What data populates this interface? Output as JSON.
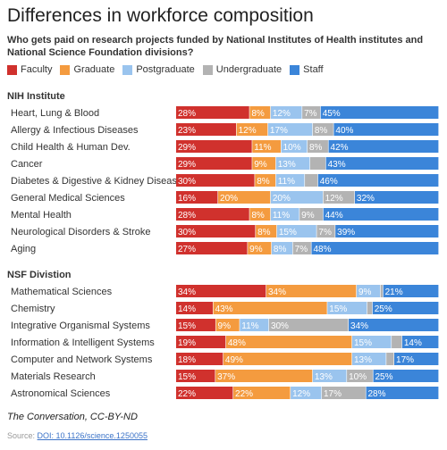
{
  "chart_data": {
    "type": "bar",
    "stacked": true,
    "orientation": "horizontal",
    "title": "Differences in workforce composition",
    "subtitle": "Who gets paid on research projects funded by National Institutes of Health institutes and National Science Foundation divisions?",
    "xlim": [
      0,
      100
    ],
    "unit": "%",
    "legend_position": "top-left",
    "series_names": [
      "Faculty",
      "Graduate",
      "Postgraduate",
      "Undergraduate",
      "Staff"
    ],
    "colors": [
      "#d0312d",
      "#f49b3f",
      "#9ac4ee",
      "#b3b3b3",
      "#3b85d9"
    ],
    "groups": [
      {
        "name": "NIH Institute",
        "categories": [
          "Heart, Lung & Blood",
          "Allergy & Infectious Diseases",
          "Child Health & Human Dev.",
          "Cancer",
          "Diabetes & Digestive & Kidney Diseases",
          "General Medical Sciences",
          "Mental Health",
          "Neurological Disorders & Stroke",
          "Aging"
        ],
        "values": [
          [
            28,
            8,
            12,
            7,
            45
          ],
          [
            23,
            12,
            17,
            8,
            40
          ],
          [
            29,
            11,
            10,
            8,
            42
          ],
          [
            29,
            9,
            13,
            6,
            43
          ],
          [
            30,
            8,
            11,
            5,
            46
          ],
          [
            16,
            20,
            20,
            12,
            32
          ],
          [
            28,
            8,
            11,
            9,
            44
          ],
          [
            30,
            8,
            15,
            7,
            39
          ],
          [
            27,
            9,
            8,
            7,
            48
          ]
        ],
        "labels": [
          [
            "28%",
            "8%",
            "12%",
            "7%",
            "45%"
          ],
          [
            "23%",
            "12%",
            "17%",
            "8%",
            "40%"
          ],
          [
            "29%",
            "11%",
            "10%",
            "8%",
            "42%"
          ],
          [
            "29%",
            "9%",
            "13%",
            "",
            "43%"
          ],
          [
            "30%",
            "8%",
            "11%",
            "",
            "46%"
          ],
          [
            "16%",
            "20%",
            "20%",
            "12%",
            "32%"
          ],
          [
            "28%",
            "8%",
            "11%",
            "9%",
            "44%"
          ],
          [
            "30%",
            "8%",
            "15%",
            "7%",
            "39%"
          ],
          [
            "27%",
            "9%",
            "8%",
            "7%",
            "48%"
          ]
        ]
      },
      {
        "name": "NSF Divistion",
        "categories": [
          "Mathematical Sciences",
          "Chemistry",
          "Integrative Organismal Systems",
          "Information & Intelligent Systems",
          "Computer and Network Systems",
          "Materials Research",
          "Astronomical Sciences"
        ],
        "values": [
          [
            34,
            34,
            9,
            1,
            21
          ],
          [
            14,
            43,
            15,
            2,
            25
          ],
          [
            15,
            9,
            11,
            30,
            34
          ],
          [
            19,
            48,
            15,
            4,
            14
          ],
          [
            18,
            49,
            13,
            3,
            17
          ],
          [
            15,
            37,
            13,
            10,
            25
          ],
          [
            22,
            22,
            12,
            17,
            28
          ]
        ],
        "labels": [
          [
            "34%",
            "34%",
            "9%",
            "",
            "21%"
          ],
          [
            "14%",
            "43%",
            "15%",
            "",
            "25%"
          ],
          [
            "15%",
            "9%",
            "11%",
            "30%",
            "34%"
          ],
          [
            "19%",
            "48%",
            "15%",
            "",
            "14%"
          ],
          [
            "18%",
            "49%",
            "13%",
            "",
            "17%"
          ],
          [
            "15%",
            "37%",
            "13%",
            "10%",
            "25%"
          ],
          [
            "22%",
            "22%",
            "12%",
            "17%",
            "28%"
          ]
        ]
      }
    ]
  },
  "footer": {
    "credit": "The Conversation, CC-BY-ND",
    "source_label": "Source:",
    "source_link": "DOI: 10.1126/science.1250055"
  }
}
